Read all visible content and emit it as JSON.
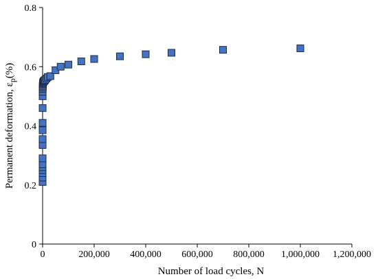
{
  "chart_data": {
    "type": "scatter",
    "title": "",
    "xlabel": "Number of load cycles, N",
    "ylabel_prefix": "Permanent deformation, ε",
    "ylabel_subscript": "p",
    "ylabel_suffix": "(%)",
    "xlim": [
      0,
      1200000
    ],
    "ylim": [
      0,
      0.8
    ],
    "x_ticks": [
      0,
      200000,
      400000,
      600000,
      800000,
      1000000,
      1200000
    ],
    "x_tick_labels": [
      "0",
      "200,000",
      "400,000",
      "600,000",
      "800,000",
      "1,000,000",
      "1,200,000"
    ],
    "y_ticks": [
      0,
      0.2,
      0.4,
      0.6,
      0.8
    ],
    "y_tick_labels": [
      "0",
      "0.2",
      "0.4",
      "0.6",
      "0.8"
    ],
    "grid": false,
    "legend": "none",
    "marker": "square",
    "marker_color": "#4472C4",
    "marker_edge_color": "#1f2a44",
    "series": [
      {
        "x": [
          1,
          2,
          3,
          5,
          7,
          10,
          15,
          20,
          30,
          50,
          70,
          100,
          150,
          200,
          300,
          500,
          700,
          1000,
          1500,
          2000,
          3000,
          5000,
          7000,
          10000,
          15000,
          20000,
          30000,
          50000,
          70000,
          100000,
          150000,
          200000,
          300000,
          400000,
          500000,
          700000,
          1000000
        ],
        "y": [
          0.21,
          0.225,
          0.24,
          0.25,
          0.26,
          0.27,
          0.29,
          0.335,
          0.355,
          0.385,
          0.41,
          0.46,
          0.5,
          0.515,
          0.525,
          0.53,
          0.535,
          0.54,
          0.543,
          0.546,
          0.549,
          0.551,
          0.553,
          0.555,
          0.56,
          0.565,
          0.568,
          0.588,
          0.6,
          0.607,
          0.618,
          0.626,
          0.635,
          0.642,
          0.647,
          0.657,
          0.662
        ]
      }
    ]
  }
}
